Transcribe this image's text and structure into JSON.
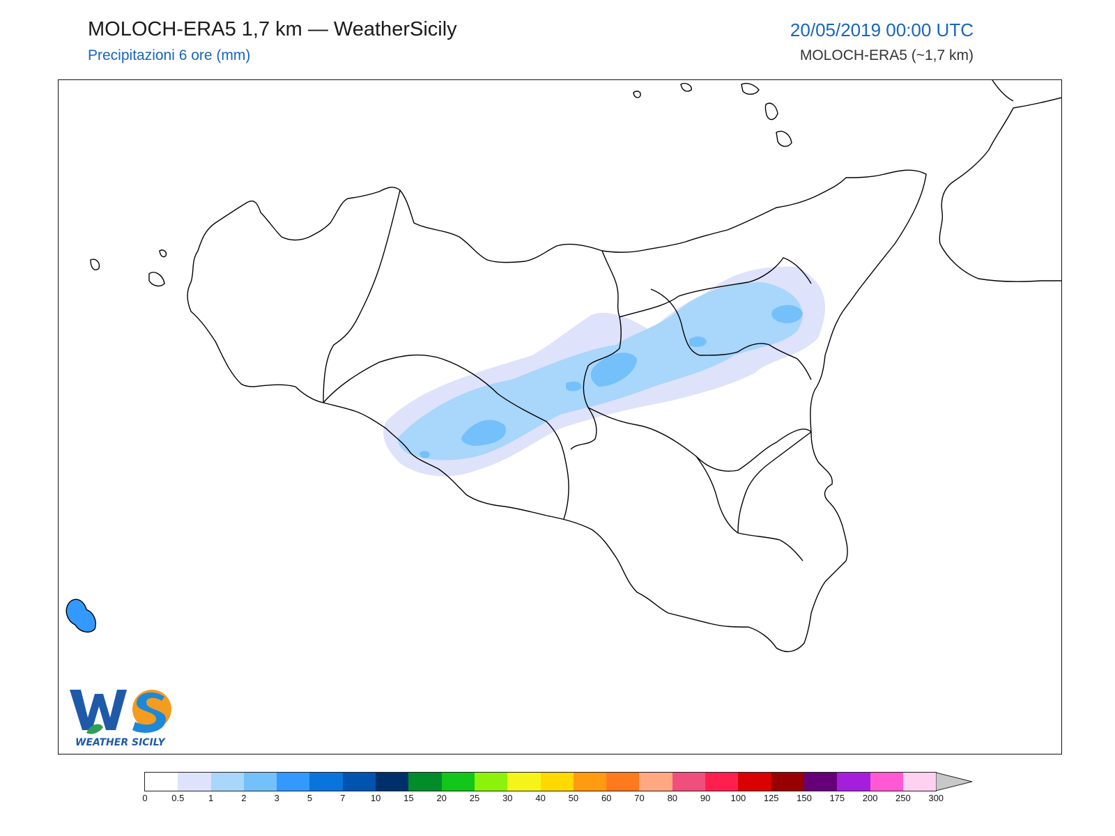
{
  "header": {
    "title": "MOLOCH-ERA5 1,7 km — WeatherSicily",
    "subtitle": "Precipitazioni 6 ore (mm)",
    "datetime": "20/05/2019 00:00 UTC",
    "model": "MOLOCH-ERA5 (~1,7 km)"
  },
  "logo": {
    "letters": "WS",
    "name": "WEATHER SICILY"
  },
  "legend": {
    "labels": [
      "0",
      "0.5",
      "1",
      "2",
      "3",
      "5",
      "7",
      "10",
      "15",
      "20",
      "25",
      "30",
      "40",
      "50",
      "60",
      "70",
      "80",
      "90",
      "100",
      "125",
      "150",
      "175",
      "200",
      "250",
      "300"
    ],
    "colors": [
      "#ffffff",
      "#dfe2fb",
      "#a9d6fb",
      "#74c0fa",
      "#3399ff",
      "#0a74dd",
      "#0054b0",
      "#00306b",
      "#008c2a",
      "#13c61a",
      "#8cf20c",
      "#f4f41b",
      "#ffd900",
      "#ff9b10",
      "#ff7a1e",
      "#ffa882",
      "#f04f7e",
      "#ff1f4f",
      "#d90000",
      "#990000",
      "#650078",
      "#a51edc",
      "#ff5ad3",
      "#ffd1f0"
    ],
    "overflow_color": "#c8c8c8"
  }
}
